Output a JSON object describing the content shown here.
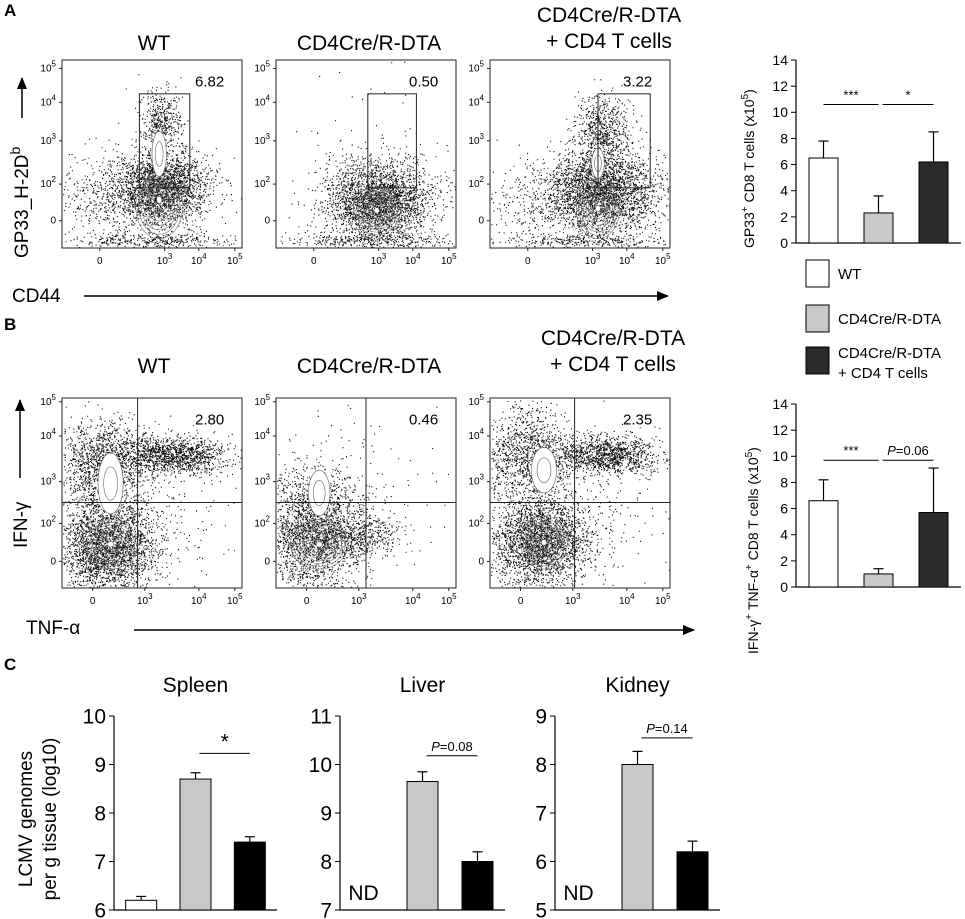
{
  "figure": {
    "panel_a": {
      "letter": "A",
      "plots": [
        {
          "title_line1": "WT",
          "title_line2": "",
          "gate_value": "6.82"
        },
        {
          "title_line1": "CD4Cre/R-DTA",
          "title_line2": "",
          "gate_value": "0.50"
        },
        {
          "title_line1": "CD4Cre/R-DTA",
          "title_line2": "+ CD4 T cells",
          "gate_value": "3.22"
        }
      ],
      "y_axis_label": "GP33_H-2D",
      "y_axis_sup": "b",
      "x_axis_label": "CD44",
      "y_ticks": [
        "0",
        "10",
        "10",
        "10",
        "10"
      ],
      "y_tick_exps": [
        "",
        "2",
        "3",
        "4",
        "5"
      ],
      "x_ticks": [
        "0",
        "10",
        "10",
        "10"
      ],
      "x_tick_exps": [
        "",
        "3",
        "4",
        "5"
      ]
    },
    "panel_b": {
      "letter": "B",
      "plots": [
        {
          "title_line1": "WT",
          "title_line2": "",
          "gate_value": "2.80"
        },
        {
          "title_line1": "CD4Cre/R-DTA",
          "title_line2": "",
          "gate_value": "0.46"
        },
        {
          "title_line1": "CD4Cre/R-DTA",
          "title_line2": "+ CD4 T cells",
          "gate_value": "2.35"
        }
      ],
      "y_axis_label": "IFN-γ",
      "x_axis_label": "TNF-α"
    },
    "panel_c": {
      "letter": "C",
      "y_axis_label_line1": "LCMV genomes",
      "y_axis_label_line2": "per g tissue (log10)",
      "nd_label": "ND"
    },
    "legend": {
      "items": [
        {
          "label_line1": "WT",
          "label_line2": "",
          "color": "#ffffff"
        },
        {
          "label_line1": "CD4Cre/R-DTA",
          "label_line2": "",
          "color": "#c8c8c8"
        },
        {
          "label_line1": "CD4Cre/R-DTA",
          "label_line2": "+ CD4 T cells",
          "color": "#2b2b2b"
        }
      ]
    }
  },
  "chart_data": [
    {
      "type": "bar",
      "id": "gp33_bar",
      "title": "",
      "ylabel": "GP33+ CD8 T cells (x10^5)",
      "ylabel_parts": {
        "a": "GP33",
        "a_sup": "+",
        "b": " CD8 T cells (x10",
        "b_sup": "5",
        "c": ")"
      },
      "categories": [
        "WT",
        "CD4Cre/R-DTA",
        "CD4Cre/R-DTA + CD4 T cells"
      ],
      "values": [
        6.5,
        2.3,
        6.2
      ],
      "errors": [
        1.3,
        1.3,
        2.3
      ],
      "colors": [
        "#ffffff",
        "#c8c8c8",
        "#2b2b2b"
      ],
      "ylim": [
        0,
        14
      ],
      "yticks": [
        0,
        2,
        4,
        6,
        8,
        10,
        12,
        14
      ],
      "annotations": [
        {
          "from": 0,
          "to": 1,
          "y": 10.6,
          "text": "***",
          "italic_p": false
        },
        {
          "from": 1,
          "to": 2,
          "y": 10.6,
          "text": "*",
          "italic_p": false
        }
      ]
    },
    {
      "type": "bar",
      "id": "ifn_bar",
      "title": "",
      "ylabel": "IFN-γ+ TNF-α+ CD8 T cells (x10^5)",
      "ylabel_parts": {
        "a": "IFN-γ",
        "a_sup": "+",
        "b": " TNF-α",
        "b_sup": "+",
        "c": " CD8 T cells (x10",
        "c_sup": "5",
        "d": ")"
      },
      "categories": [
        "WT",
        "CD4Cre/R-DTA",
        "CD4Cre/R-DTA + CD4 T cells"
      ],
      "values": [
        6.6,
        1.0,
        5.7
      ],
      "errors": [
        1.6,
        0.4,
        3.4
      ],
      "colors": [
        "#ffffff",
        "#c8c8c8",
        "#2b2b2b"
      ],
      "ylim": [
        0,
        14
      ],
      "yticks": [
        0,
        2,
        4,
        6,
        8,
        10,
        12,
        14
      ],
      "annotations": [
        {
          "from": 0,
          "to": 1,
          "y": 9.7,
          "text": "***",
          "italic_p": false
        },
        {
          "from": 1,
          "to": 2,
          "y": 9.7,
          "text": "=0.06",
          "italic_p": true
        }
      ]
    },
    {
      "type": "bar",
      "id": "spleen_bar",
      "title": "Spleen",
      "ylabel": "LCMV genomes per g tissue (log10)",
      "categories": [
        "WT",
        "CD4Cre/R-DTA",
        "CD4Cre/R-DTA + CD4 T cells"
      ],
      "values": [
        6.2,
        8.7,
        7.4
      ],
      "errors": [
        0.08,
        0.13,
        0.11
      ],
      "colors": [
        "#ffffff",
        "#c8c8c8",
        "#000000"
      ],
      "nd": [
        false,
        false,
        false
      ],
      "ylim": [
        6,
        10
      ],
      "yticks": [
        6,
        7,
        8,
        9,
        10
      ],
      "annotations": [
        {
          "from": 1,
          "to": 2,
          "y": 9.23,
          "text": "*",
          "italic_p": false
        }
      ]
    },
    {
      "type": "bar",
      "id": "liver_bar",
      "title": "Liver",
      "ylabel": "",
      "categories": [
        "WT",
        "CD4Cre/R-DTA",
        "CD4Cre/R-DTA + CD4 T cells"
      ],
      "values": [
        null,
        9.65,
        8.0
      ],
      "errors": [
        0,
        0.2,
        0.2
      ],
      "colors": [
        "#ffffff",
        "#c8c8c8",
        "#000000"
      ],
      "nd": [
        true,
        false,
        false
      ],
      "ylim": [
        7,
        11
      ],
      "yticks": [
        7,
        8,
        9,
        10,
        11
      ],
      "annotations": [
        {
          "from": 1,
          "to": 2,
          "y": 10.18,
          "text": "=0.08",
          "italic_p": true
        }
      ]
    },
    {
      "type": "bar",
      "id": "kidney_bar",
      "title": "Kidney",
      "ylabel": "",
      "categories": [
        "WT",
        "CD4Cre/R-DTA",
        "CD4Cre/R-DTA + CD4 T cells"
      ],
      "values": [
        null,
        8.0,
        6.2
      ],
      "errors": [
        0,
        0.27,
        0.22
      ],
      "colors": [
        "#ffffff",
        "#c8c8c8",
        "#000000"
      ],
      "nd": [
        true,
        false,
        false
      ],
      "ylim": [
        5,
        9
      ],
      "yticks": [
        5,
        6,
        7,
        8,
        9
      ],
      "annotations": [
        {
          "from": 1,
          "to": 2,
          "y": 8.55,
          "text": "=0.14",
          "italic_p": true
        }
      ]
    }
  ]
}
